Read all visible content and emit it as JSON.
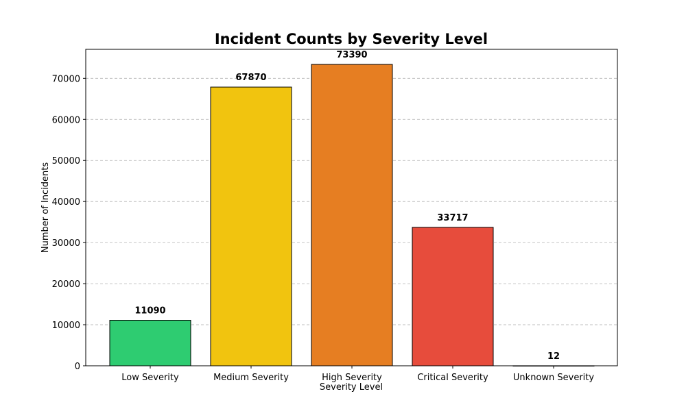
{
  "chart_data": {
    "type": "bar",
    "title": "Incident Counts by Severity Level",
    "xlabel": "Severity Level",
    "ylabel": "Number of Incidents",
    "categories": [
      "Low Severity",
      "Medium Severity",
      "High Severity",
      "Critical Severity",
      "Unknown Severity"
    ],
    "values": [
      11090,
      67870,
      73390,
      33717,
      12
    ],
    "colors": [
      "#2ecc71",
      "#f1c40f",
      "#e67e22",
      "#e74c3c",
      "#95a5a6"
    ],
    "edge_color": "#000000",
    "ylim": [
      0,
      77060
    ],
    "yticks": [
      0,
      10000,
      20000,
      30000,
      40000,
      50000,
      60000,
      70000
    ],
    "grid": true,
    "grid_axis": "y",
    "legend": false
  }
}
